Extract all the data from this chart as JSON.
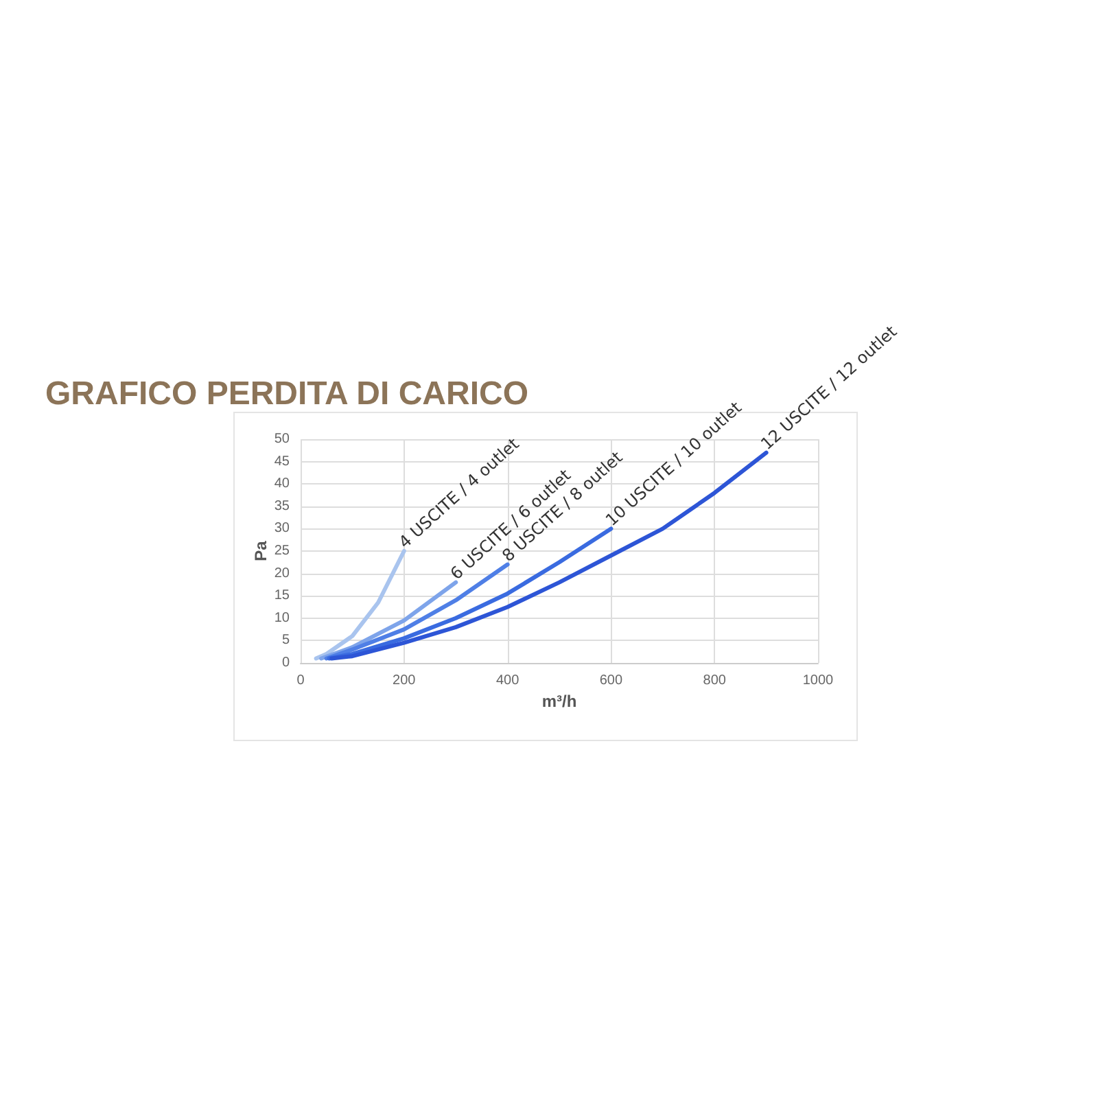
{
  "chart_data": {
    "type": "line",
    "title": "GRAFICO PERDITA DI CARICO",
    "xlabel": "m³/h",
    "ylabel": "Pa",
    "xlim": [
      0,
      1000
    ],
    "xticks": [
      0,
      200,
      400,
      600,
      800,
      1000
    ],
    "ylim": [
      0,
      50
    ],
    "yticks": [
      0,
      5,
      10,
      15,
      20,
      25,
      30,
      35,
      40,
      45,
      50
    ],
    "grid": true,
    "legend": false,
    "marker": "none",
    "line_style": "solid",
    "series": [
      {
        "name": "4 USCITE / 4 outlet",
        "color": "#a9c4ee",
        "x": [
          30,
          50,
          100,
          150,
          200
        ],
        "values": [
          1,
          2,
          6,
          13.5,
          25
        ]
      },
      {
        "name": "6 USCITE / 6 outlet",
        "color": "#7ea4ea",
        "x": [
          40,
          100,
          200,
          300
        ],
        "values": [
          1,
          3.5,
          9.5,
          18
        ]
      },
      {
        "name": "8 USCITE / 8 outlet",
        "color": "#4f7fe6",
        "x": [
          50,
          100,
          200,
          300,
          400
        ],
        "values": [
          1,
          3,
          7.5,
          14,
          22
        ]
      },
      {
        "name": "10 USCITE / 10 outlet",
        "color": "#3a6be0",
        "x": [
          55,
          100,
          200,
          300,
          400,
          500,
          600
        ],
        "values": [
          1,
          2,
          5.5,
          10,
          15.5,
          22.5,
          30
        ]
      },
      {
        "name": "12 USCITE / 12 outlet",
        "color": "#2d55d6",
        "x": [
          60,
          100,
          200,
          300,
          400,
          500,
          600,
          700,
          800,
          900
        ],
        "values": [
          1,
          1.5,
          4.5,
          8,
          12.5,
          18,
          24,
          30,
          38,
          47
        ]
      }
    ]
  }
}
